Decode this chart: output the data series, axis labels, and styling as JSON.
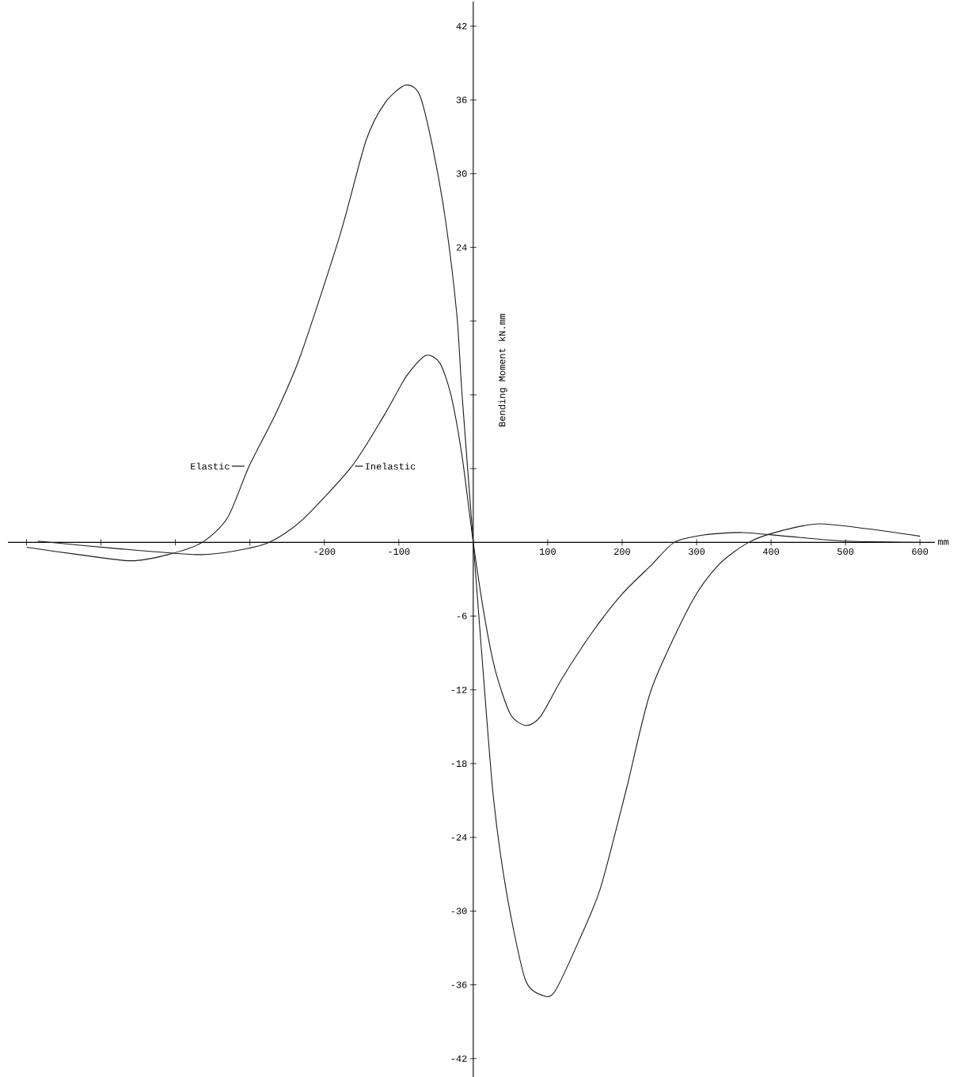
{
  "chart_data": {
    "type": "line",
    "xlabel": "mm",
    "ylabel": "Bending Moment kN.mm",
    "xlim": [
      -625,
      620
    ],
    "ylim": [
      -43.5,
      44
    ],
    "xticks": [
      {
        "value": -600,
        "label": null
      },
      {
        "value": -500,
        "label": null
      },
      {
        "value": -400,
        "label": null
      },
      {
        "value": -300,
        "label": null
      },
      -200,
      -100,
      100,
      200,
      300,
      400,
      500,
      600
    ],
    "yticks": [
      -42,
      -36,
      -30,
      -24,
      -18,
      -12,
      -6,
      {
        "value": 6,
        "label": null
      },
      {
        "value": 12,
        "label": null
      },
      {
        "value": 18,
        "label": null
      },
      24,
      30,
      36,
      42
    ],
    "grid": false,
    "marker": "none",
    "line_style": "solid",
    "series": [
      {
        "color": "#1a1a1a",
        "x": [
          -600,
          -530,
          -460,
          -410,
          -364,
          -330,
          -301,
          -265,
          -232,
          -179,
          -144,
          -118,
          -91,
          -72,
          -54,
          -37,
          -22,
          -15,
          0,
          13,
          27,
          45,
          70,
          95,
          110,
          142,
          171,
          206,
          239,
          293,
          330,
          370,
          411,
          464,
          530,
          600
        ],
        "values": [
          -0.4,
          -1.0,
          -1.5,
          -1.0,
          0,
          2.0,
          6.2,
          10.5,
          15.2,
          25,
          32.7,
          35.8,
          37.2,
          36.4,
          32,
          26.1,
          18.5,
          12,
          0,
          -10.3,
          -20.7,
          -28.6,
          -35.6,
          -36.9,
          -36.5,
          -32.4,
          -28.1,
          -20,
          -12,
          -4.9,
          -1.8,
          0,
          0.9,
          1.5,
          1.1,
          0.5
        ]
      },
      {
        "color": "#1a1a1a",
        "x": [
          -585,
          -480,
          -372,
          -320,
          -274,
          -230,
          -163,
          -120,
          -90,
          -64,
          -45,
          -30,
          -15,
          0,
          15,
          30,
          50,
          71,
          90,
          120,
          160,
          200,
          240,
          270,
          310,
          361,
          420,
          500,
          600
        ],
        "values": [
          0.1,
          -0.5,
          -1.0,
          -0.7,
          0,
          1.8,
          6.2,
          10.3,
          13.5,
          15.2,
          14.6,
          12,
          7,
          0,
          -6,
          -10.5,
          -14,
          -14.9,
          -14.2,
          -11,
          -7.3,
          -4.2,
          -1.8,
          0,
          0.6,
          0.8,
          0.5,
          0.1,
          0
        ]
      }
    ],
    "annotations": [
      {
        "text": "Elastic",
        "x": -301,
        "y": 6.2
      },
      {
        "text": "Inelastic",
        "x": -163,
        "y": 6.2
      }
    ]
  }
}
